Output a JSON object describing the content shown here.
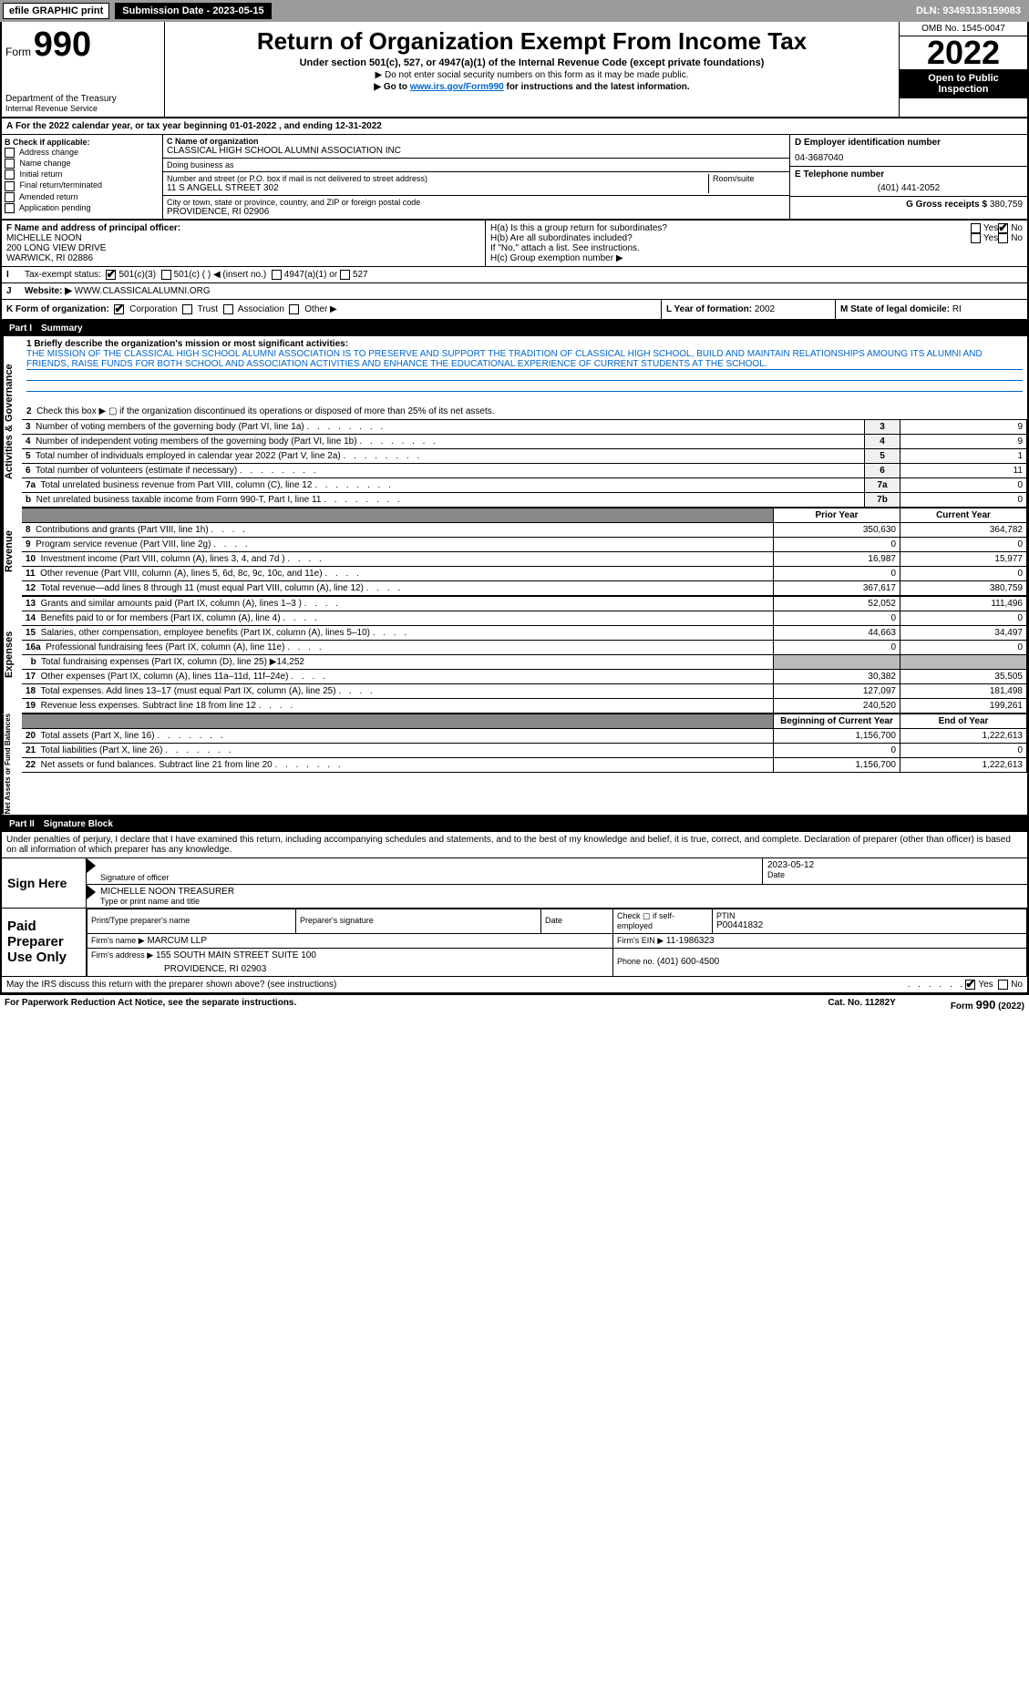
{
  "topbar": {
    "efile": "efile GRAPHIC print",
    "submit": "Submission Date - 2023-05-15",
    "dln": "DLN: 93493135159083"
  },
  "hdr": {
    "formword": "Form",
    "formnum": "990",
    "dept": "Department of the Treasury",
    "irs": "Internal Revenue Service",
    "title": "Return of Organization Exempt From Income Tax",
    "sub": "Under section 501(c), 527, or 4947(a)(1) of the Internal Revenue Code (except private foundations)",
    "note1": "▶ Do not enter social security numbers on this form as it may be made public.",
    "note2": "▶ Go to ",
    "link": "www.irs.gov/Form990",
    "note3": " for instructions and the latest information.",
    "omb": "OMB No. 1545-0047",
    "year": "2022",
    "open": "Open to Public Inspection"
  },
  "A": {
    "text": "For the 2022 calendar year, or tax year beginning 01-01-2022     , and ending 12-31-2022"
  },
  "B": {
    "label": "B Check if applicable:",
    "items": [
      "Address change",
      "Name change",
      "Initial return",
      "Final return/terminated",
      "Amended return",
      "Application pending"
    ]
  },
  "C": {
    "namelabel": "C Name of organization",
    "name": "CLASSICAL HIGH SCHOOL ALUMNI ASSOCIATION INC",
    "dba": "Doing business as",
    "street_label": "Number and street (or P.O. box if mail is not delivered to street address)",
    "room": "Room/suite",
    "street": "11 S ANGELL STREET 302",
    "city_label": "City or town, state or province, country, and ZIP or foreign postal code",
    "city": "PROVIDENCE, RI  02906"
  },
  "D": {
    "label": "D Employer identification number",
    "val": "04-3687040"
  },
  "E": {
    "label": "E Telephone number",
    "val": "(401) 441-2052"
  },
  "G": {
    "label": "G Gross receipts $",
    "val": "380,759"
  },
  "F": {
    "label": "F  Name and address of principal officer:",
    "name": "MICHELLE NOON",
    "addr1": "200 LONG VIEW DRIVE",
    "addr2": "WARWICK, RI  02886"
  },
  "H": {
    "a": "H(a)  Is this a group return for subordinates?",
    "b": "H(b)  Are all subordinates included?",
    "bnote": "If \"No,\" attach a list. See instructions.",
    "c": "H(c)  Group exemption number ▶",
    "yes": "Yes",
    "no": "No"
  },
  "I": {
    "label": "Tax-exempt status:",
    "o1": "501(c)(3)",
    "o2": "501(c) (  ) ◀ (insert no.)",
    "o3": "4947(a)(1) or",
    "o4": "527"
  },
  "J": {
    "label": "Website: ▶",
    "val": "WWW.CLASSICALALUMNI.ORG"
  },
  "K": {
    "label": "K Form of organization:",
    "o1": "Corporation",
    "o2": "Trust",
    "o3": "Association",
    "o4": "Other ▶"
  },
  "L": {
    "label": "L Year of formation:",
    "val": "2002"
  },
  "M": {
    "label": "M State of legal domicile:",
    "val": "RI"
  },
  "part1": {
    "num": "Part I",
    "title": "Summary"
  },
  "p1_1": {
    "label": "1 Briefly describe the organization's mission or most significant activities:",
    "text": "THE MISSION OF THE CLASSICAL HIGH SCHOOL ALUMNI ASSOCIATION IS TO PRESERVE AND SUPPORT THE TRADITION OF CLASSICAL HIGH SCHOOL, BUILD AND MAINTAIN RELATIONSHIPS AMOUNG ITS ALUMNI AND FRIENDS, RAISE FUNDS FOR BOTH SCHOOL AND ASSOCIATION ACTIVITIES AND ENHANCE THE EDUCATIONAL EXPERIENCE OF CURRENT STUDENTS AT THE SCHOOL."
  },
  "gov": {
    "side": "Activities & Governance",
    "l2": "Check this box ▶ ▢  if the organization discontinued its operations or disposed of more than 25% of its net assets.",
    "rows": [
      {
        "n": "3",
        "t": "Number of voting members of the governing body (Part VI, line 1a)",
        "box": "3",
        "v": "9"
      },
      {
        "n": "4",
        "t": "Number of independent voting members of the governing body (Part VI, line 1b)",
        "box": "4",
        "v": "9"
      },
      {
        "n": "5",
        "t": "Total number of individuals employed in calendar year 2022 (Part V, line 2a)",
        "box": "5",
        "v": "1"
      },
      {
        "n": "6",
        "t": "Total number of volunteers (estimate if necessary)",
        "box": "6",
        "v": "11"
      },
      {
        "n": "7a",
        "t": "Total unrelated business revenue from Part VIII, column (C), line 12",
        "box": "7a",
        "v": "0"
      },
      {
        "n": "b",
        "t": "Net unrelated business taxable income from Form 990-T, Part I, line 11",
        "box": "7b",
        "v": "0"
      }
    ]
  },
  "rev": {
    "side": "Revenue",
    "hprior": "Prior Year",
    "hcurr": "Current Year",
    "rows": [
      {
        "n": "8",
        "t": "Contributions and grants (Part VIII, line 1h)",
        "p": "350,630",
        "c": "364,782"
      },
      {
        "n": "9",
        "t": "Program service revenue (Part VIII, line 2g)",
        "p": "0",
        "c": "0"
      },
      {
        "n": "10",
        "t": "Investment income (Part VIII, column (A), lines 3, 4, and 7d )",
        "p": "16,987",
        "c": "15,977"
      },
      {
        "n": "11",
        "t": "Other revenue (Part VIII, column (A), lines 5, 6d, 8c, 9c, 10c, and 11e)",
        "p": "0",
        "c": "0"
      },
      {
        "n": "12",
        "t": "Total revenue—add lines 8 through 11 (must equal Part VIII, column (A), line 12)",
        "p": "367,617",
        "c": "380,759"
      }
    ]
  },
  "exp": {
    "side": "Expenses",
    "rows": [
      {
        "n": "13",
        "t": "Grants and similar amounts paid (Part IX, column (A), lines 1–3 )",
        "p": "52,052",
        "c": "111,496"
      },
      {
        "n": "14",
        "t": "Benefits paid to or for members (Part IX, column (A), line 4)",
        "p": "0",
        "c": "0"
      },
      {
        "n": "15",
        "t": "Salaries, other compensation, employee benefits (Part IX, column (A), lines 5–10)",
        "p": "44,663",
        "c": "34,497"
      },
      {
        "n": "16a",
        "t": "Professional fundraising fees (Part IX, column (A), line 11e)",
        "p": "0",
        "c": "0"
      }
    ],
    "b": "Total fundraising expenses (Part IX, column (D), line 25) ▶14,252",
    "rows2": [
      {
        "n": "17",
        "t": "Other expenses (Part IX, column (A), lines 11a–11d, 11f–24e)",
        "p": "30,382",
        "c": "35,505"
      },
      {
        "n": "18",
        "t": "Total expenses. Add lines 13–17 (must equal Part IX, column (A), line 25)",
        "p": "127,097",
        "c": "181,498"
      },
      {
        "n": "19",
        "t": "Revenue less expenses. Subtract line 18 from line 12",
        "p": "240,520",
        "c": "199,261"
      }
    ]
  },
  "net": {
    "side": "Net Assets or Fund Balances",
    "hb": "Beginning of Current Year",
    "he": "End of Year",
    "rows": [
      {
        "n": "20",
        "t": "Total assets (Part X, line 16)",
        "p": "1,156,700",
        "c": "1,222,613"
      },
      {
        "n": "21",
        "t": "Total liabilities (Part X, line 26)",
        "p": "0",
        "c": "0"
      },
      {
        "n": "22",
        "t": "Net assets or fund balances. Subtract line 21 from line 20",
        "p": "1,156,700",
        "c": "1,222,613"
      }
    ]
  },
  "part2": {
    "num": "Part II",
    "title": "Signature Block",
    "decl": "Under penalties of perjury, I declare that I have examined this return, including accompanying schedules and statements, and to the best of my knowledge and belief, it is true, correct, and complete. Declaration of preparer (other than officer) is based on all information of which preparer has any knowledge."
  },
  "sign": {
    "label": "Sign Here",
    "sigoff": "Signature of officer",
    "date": "Date",
    "dateval": "2023-05-12",
    "name": "MICHELLE NOON  TREASURER",
    "typelab": "Type or print name and title"
  },
  "paid": {
    "label": "Paid Preparer Use Only",
    "h1": "Print/Type preparer's name",
    "h2": "Preparer's signature",
    "h3": "Date",
    "h4": "Check ▢ if self-employed",
    "h5": "PTIN",
    "ptin": "P00441832",
    "firm": "Firm's name   ▶",
    "firmval": "MARCUM LLP",
    "ein": "Firm's EIN ▶",
    "einval": "11-1986323",
    "addr": "Firm's address ▶",
    "addrval": "155 SOUTH MAIN STREET SUITE 100",
    "city": "PROVIDENCE, RI  02903",
    "phone": "Phone no.",
    "phoneval": "(401) 600-4500"
  },
  "may": {
    "text": "May the IRS discuss this return with the preparer shown above? (see instructions)",
    "yes": "Yes",
    "no": "No"
  },
  "foot": {
    "l": "For Paperwork Reduction Act Notice, see the separate instructions.",
    "c": "Cat. No. 11282Y",
    "r": "Form 990 (2022)"
  }
}
